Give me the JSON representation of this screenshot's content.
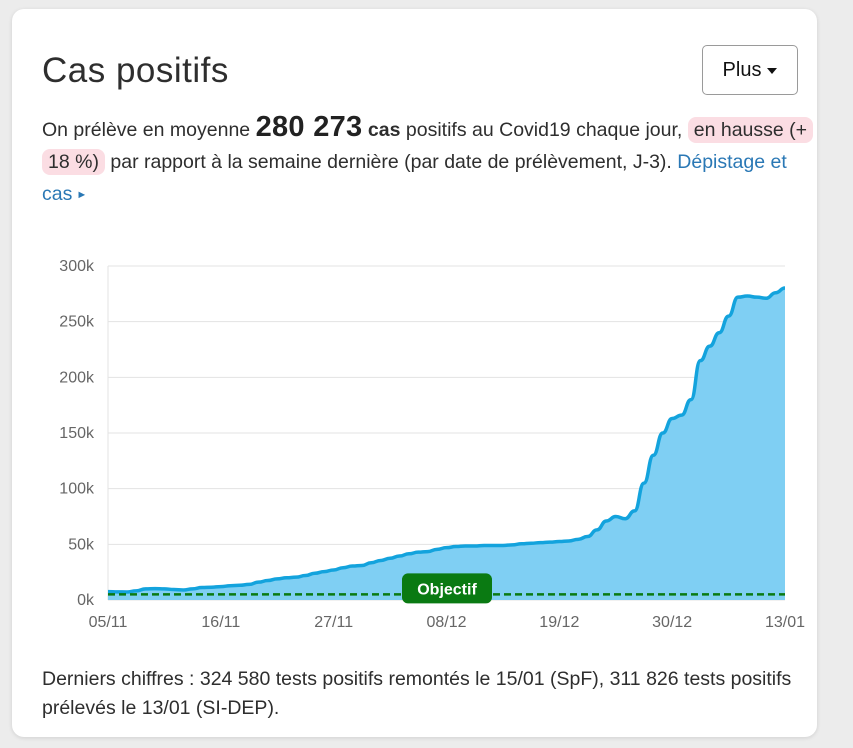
{
  "card": {
    "title": "Cas positifs",
    "plus_button_label": "Plus",
    "summary": {
      "prefix": "On prélève en moyenne",
      "big_number": "280 273",
      "unit": "cas",
      "middle": "positifs au Covid19 chaque jour,",
      "trend": "en hausse (+ 18 %)",
      "suffix": "par rapport à la semaine dernière (par date de prélèvement, J-3).",
      "link_label": "Dépistage et cas"
    },
    "footer": "Derniers chiffres : 324 580 tests positifs remontés le 15/01 (SpF), 311 826 tests positifs prélevés le 13/01 (SI-DEP)."
  },
  "colors": {
    "line": "#13a3dd",
    "area": "#7fcff3",
    "objective": "#0a7a12",
    "trend_bg": "#fbdde3",
    "link": "#2a78b5"
  },
  "chart_data": {
    "type": "area",
    "x_tick_labels": [
      "05/11",
      "16/11",
      "27/11",
      "08/12",
      "19/12",
      "30/12",
      "13/01"
    ],
    "y_tick_labels": [
      "0k",
      "50k",
      "100k",
      "150k",
      "200k",
      "250k",
      "300k"
    ],
    "ylim": [
      0,
      300000
    ],
    "grid": true,
    "series": [
      {
        "values": [
          7500,
          7300,
          7200,
          8200,
          10000,
          10200,
          10000,
          9400,
          9000,
          10000,
          11200,
          11500,
          12000,
          12800,
          13200,
          14000,
          16000,
          17500,
          19000,
          20000,
          20500,
          22000,
          24000,
          25500,
          27000,
          29000,
          30500,
          31000,
          33500,
          35500,
          37500,
          39500,
          41500,
          43000,
          43500,
          45500,
          47000,
          48000,
          48500,
          48500,
          49000,
          49000,
          49000,
          49500,
          50500,
          51000,
          51500,
          52000,
          52500,
          53000,
          54500,
          57000,
          63000,
          71000,
          75000,
          73000,
          80000,
          105000,
          130000,
          150000,
          163000,
          166000,
          180000,
          215000,
          228000,
          240000,
          255000,
          272000,
          273000,
          272000,
          271000,
          276000,
          280273
        ]
      }
    ],
    "objective": {
      "label": "Objectif",
      "value": 5000
    }
  }
}
